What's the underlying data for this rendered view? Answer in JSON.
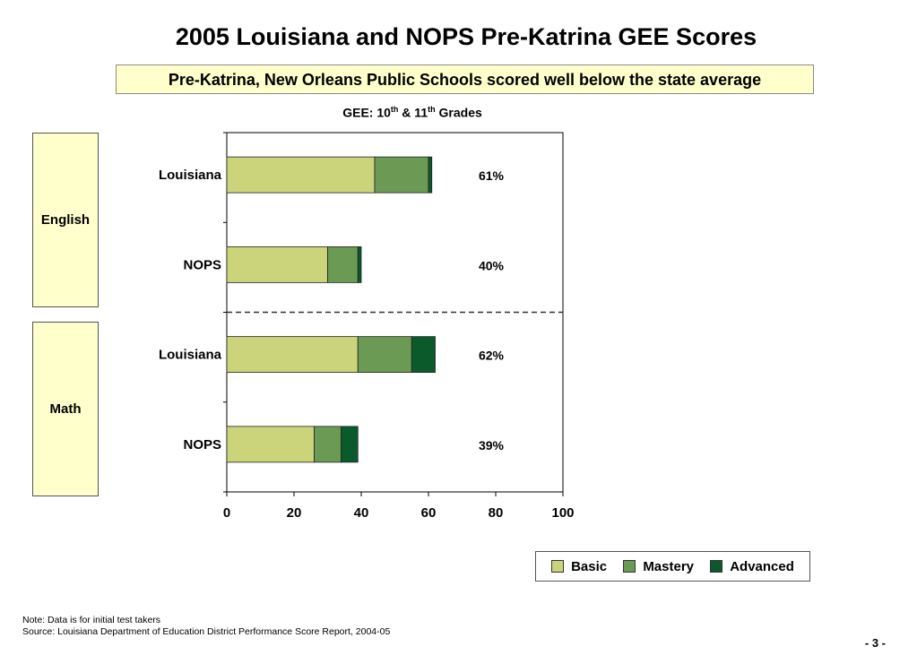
{
  "title": "2005 Louisiana and NOPS Pre-Katrina GEE Scores",
  "subtitle": "Pre-Katrina, New Orleans Public Schools scored well below the state average",
  "chart_title": {
    "prefix": "GEE: 10",
    "sup1": "th",
    "middle": " & 11",
    "sup2": "th",
    "suffix": " Grades"
  },
  "groups": [
    "English",
    "Math"
  ],
  "colors": {
    "Basic": "#cbd47a",
    "Mastery": "#6b9a55",
    "Advanced": "#0b5a2c",
    "box_fill": "#ffffcc"
  },
  "chart_data": {
    "type": "bar",
    "orientation": "horizontal",
    "stacked": true,
    "categories": [
      "Louisiana",
      "NOPS",
      "Louisiana",
      "NOPS"
    ],
    "groups": [
      "English",
      "English",
      "Math",
      "Math"
    ],
    "series": [
      {
        "name": "Basic",
        "values": [
          44,
          30,
          39,
          26
        ]
      },
      {
        "name": "Mastery",
        "values": [
          16,
          9,
          16,
          8
        ]
      },
      {
        "name": "Advanced",
        "values": [
          1,
          1,
          7,
          5
        ]
      }
    ],
    "totals_labels": [
      "61%",
      "40%",
      "62%",
      "39%"
    ],
    "xticks": [
      "0",
      "20",
      "40",
      "60",
      "80",
      "100"
    ],
    "xlim": [
      0,
      100
    ],
    "legend_position": "bottom-right",
    "grid": false
  },
  "legend": {
    "items": [
      "Basic",
      "Mastery",
      "Advanced"
    ]
  },
  "notes": {
    "line1": "Note: Data is for initial test takers",
    "line2": "Source: Louisiana Department of Education District Performance Score Report, 2004-05"
  },
  "page_number": "- 3 -"
}
